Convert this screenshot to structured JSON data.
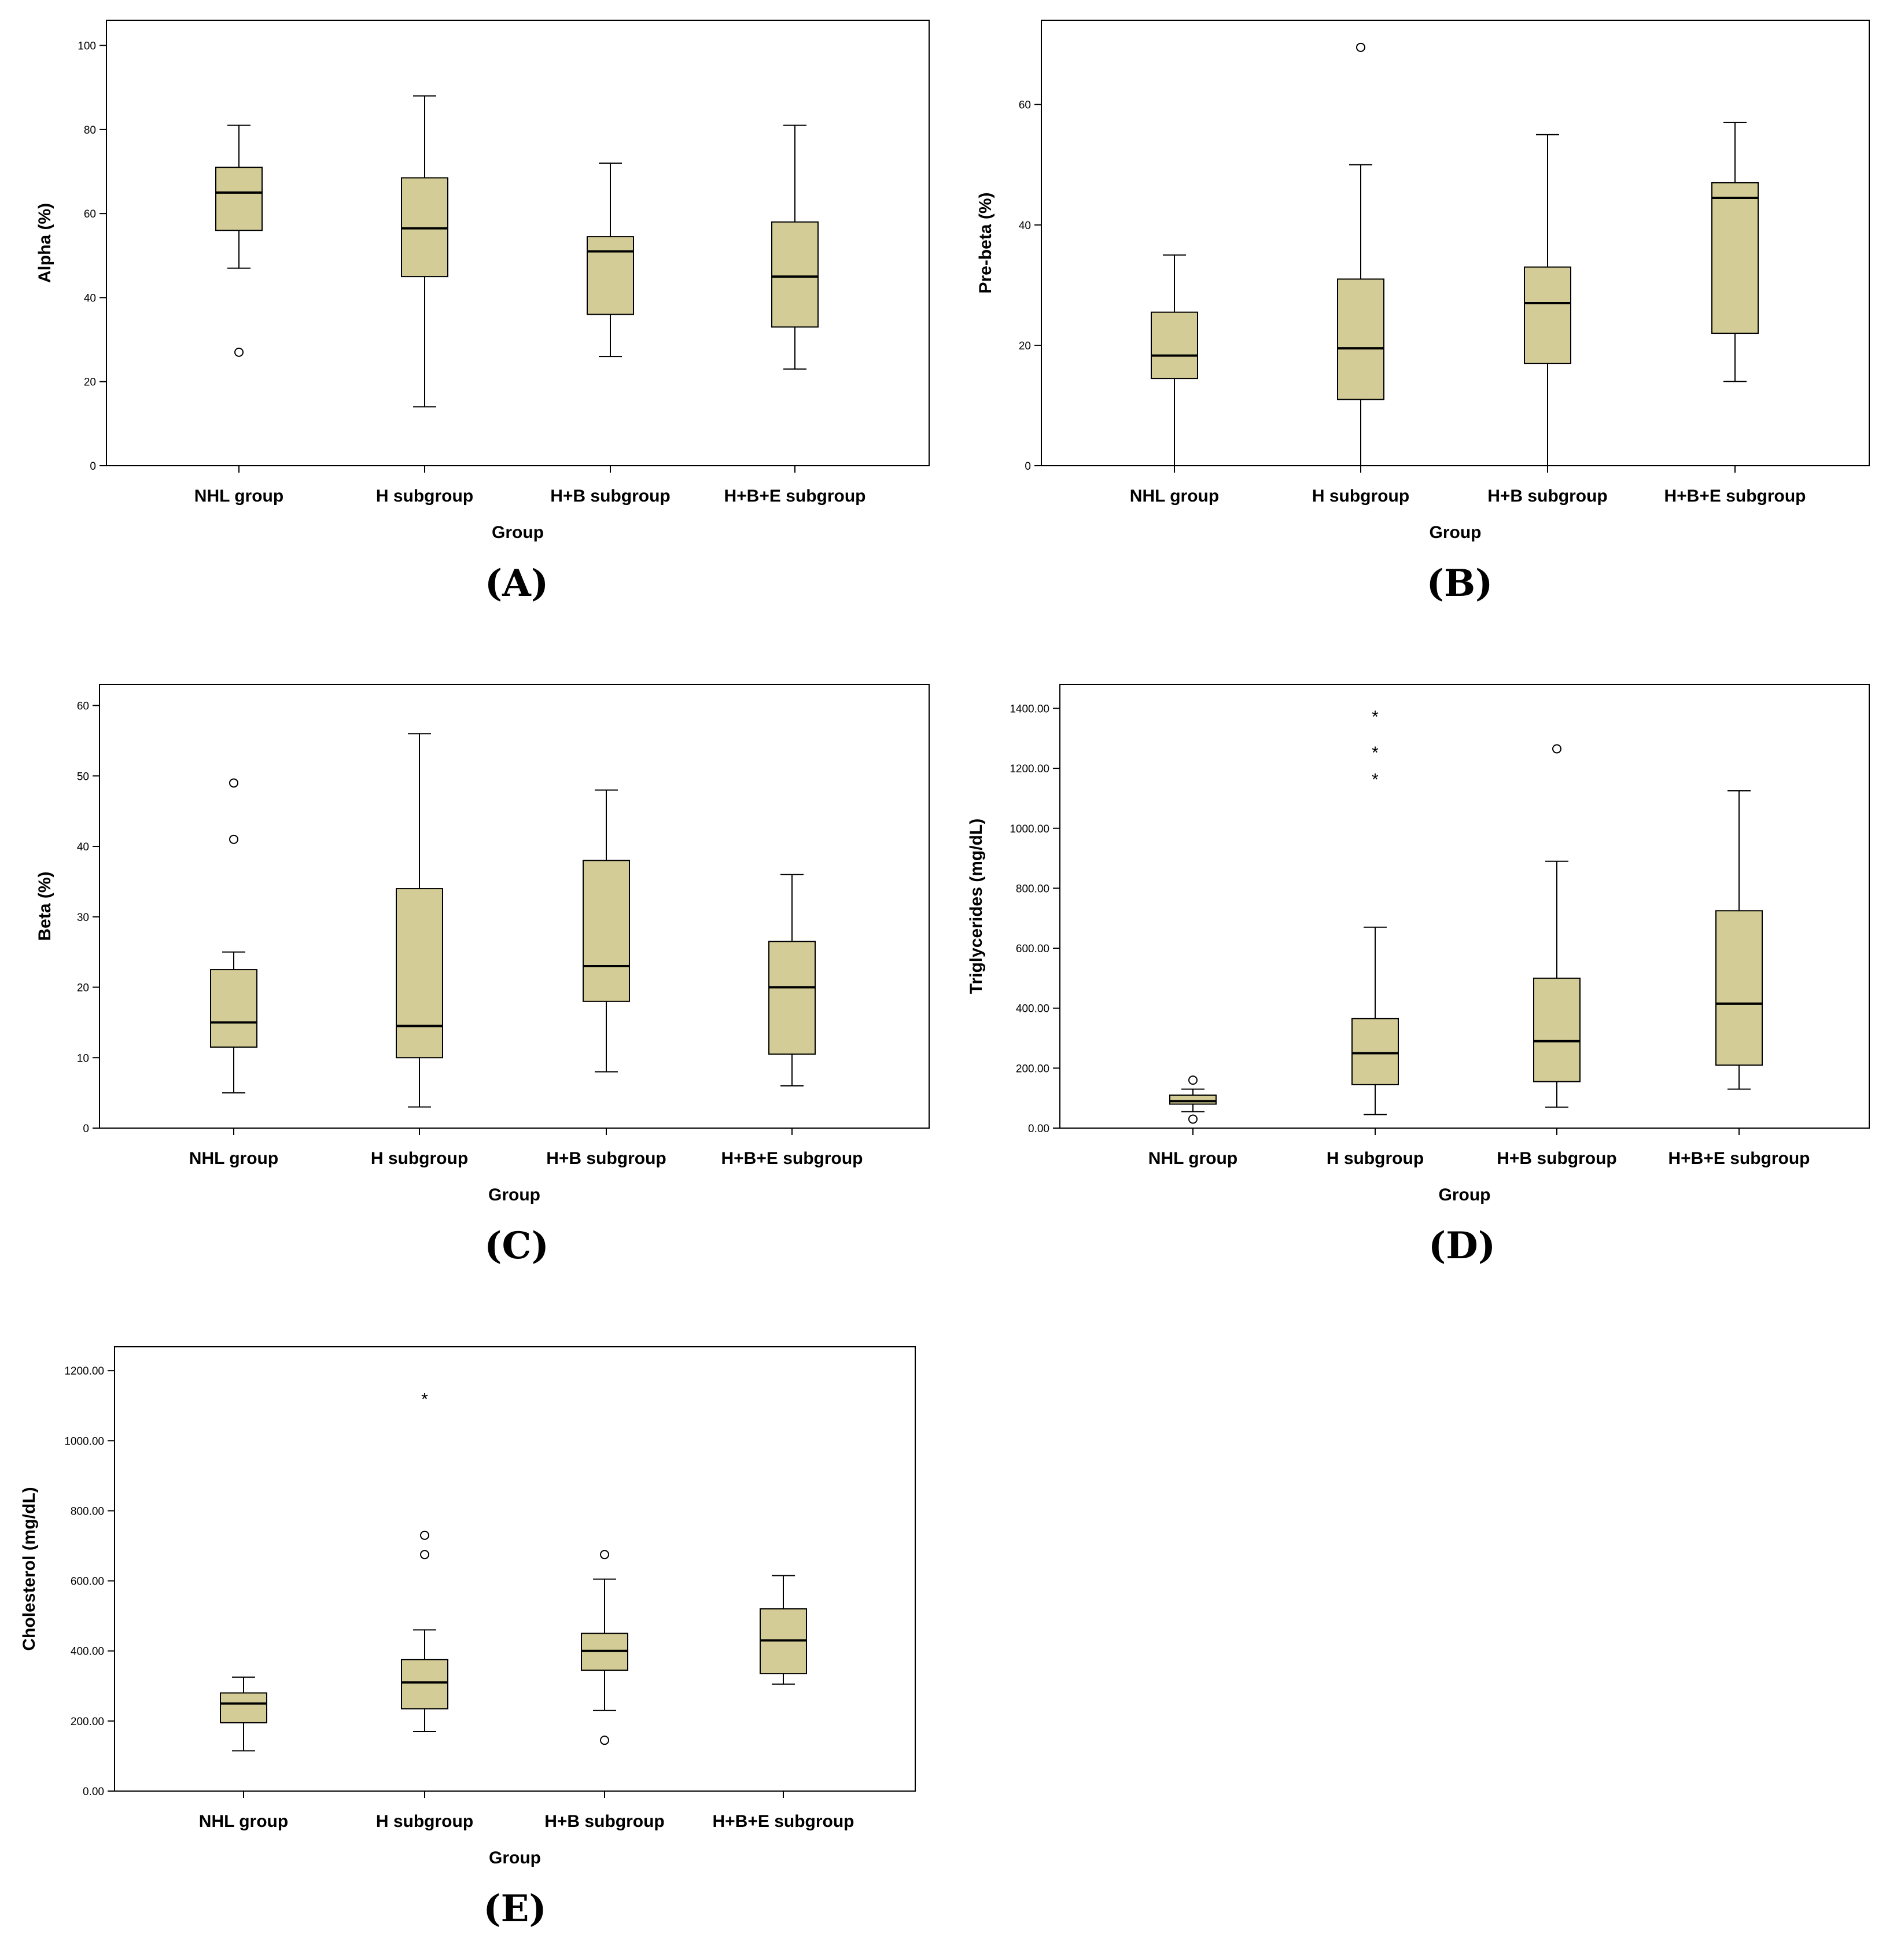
{
  "colors": {
    "box_fill": "#d4cc96",
    "stroke": "#000000",
    "background": "#ffffff"
  },
  "chart_data": [
    {
      "type": "box",
      "panel_label": "(A)",
      "xlabel": "Group",
      "ylabel": "Alpha (%)",
      "categories": [
        "NHL group",
        "H subgroup",
        "H+B subgroup",
        "H+B+E subgroup"
      ],
      "ylim": [
        0,
        106
      ],
      "yticks": [
        0,
        20,
        40,
        60,
        80,
        100
      ],
      "ytick_labels": [
        "0",
        "20",
        "40",
        "60",
        "80",
        "100"
      ],
      "boxes": [
        {
          "whisker_low": 47,
          "q1": 56,
          "median": 65,
          "q3": 71,
          "whisker_high": 81,
          "outliers": [
            27
          ],
          "extremes": []
        },
        {
          "whisker_low": 14,
          "q1": 45,
          "median": 56.5,
          "q3": 68.5,
          "whisker_high": 88,
          "outliers": [],
          "extremes": []
        },
        {
          "whisker_low": 26,
          "q1": 36,
          "median": 51,
          "q3": 54.5,
          "whisker_high": 72,
          "outliers": [],
          "extremes": []
        },
        {
          "whisker_low": 23,
          "q1": 33,
          "median": 45,
          "q3": 58,
          "whisker_high": 81,
          "outliers": [],
          "extremes": []
        }
      ]
    },
    {
      "type": "box",
      "panel_label": "(B)",
      "xlabel": "Group",
      "ylabel": "Pre-beta (%)",
      "categories": [
        "NHL group",
        "H subgroup",
        "H+B subgroup",
        "H+B+E subgroup"
      ],
      "ylim": [
        0,
        74
      ],
      "yticks": [
        0,
        20,
        40,
        60
      ],
      "ytick_labels": [
        "0",
        "20",
        "40",
        "60"
      ],
      "boxes": [
        {
          "whisker_low": 0,
          "q1": 14.5,
          "median": 18.3,
          "q3": 25.5,
          "whisker_high": 35,
          "outliers": [],
          "extremes": []
        },
        {
          "whisker_low": 0,
          "q1": 11,
          "median": 19.5,
          "q3": 31,
          "whisker_high": 50,
          "outliers": [
            69.5
          ],
          "extremes": []
        },
        {
          "whisker_low": 0,
          "q1": 17,
          "median": 27,
          "q3": 33,
          "whisker_high": 55,
          "outliers": [],
          "extremes": []
        },
        {
          "whisker_low": 14,
          "q1": 22,
          "median": 44.5,
          "q3": 47,
          "whisker_high": 57,
          "outliers": [],
          "extremes": []
        }
      ]
    },
    {
      "type": "box",
      "panel_label": "(C)",
      "xlabel": "Group",
      "ylabel": "Beta (%)",
      "categories": [
        "NHL group",
        "H subgroup",
        "H+B subgroup",
        "H+B+E subgroup"
      ],
      "ylim": [
        0,
        63
      ],
      "yticks": [
        0,
        10,
        20,
        30,
        40,
        50,
        60
      ],
      "ytick_labels": [
        "0",
        "10",
        "20",
        "30",
        "40",
        "50",
        "60"
      ],
      "boxes": [
        {
          "whisker_low": 5,
          "q1": 11.5,
          "median": 15,
          "q3": 22.5,
          "whisker_high": 25,
          "outliers": [
            41,
            49
          ],
          "extremes": []
        },
        {
          "whisker_low": 3,
          "q1": 10,
          "median": 14.5,
          "q3": 34,
          "whisker_high": 56,
          "outliers": [],
          "extremes": []
        },
        {
          "whisker_low": 8,
          "q1": 18,
          "median": 23,
          "q3": 38,
          "whisker_high": 48,
          "outliers": [],
          "extremes": []
        },
        {
          "whisker_low": 6,
          "q1": 10.5,
          "median": 20,
          "q3": 26.5,
          "whisker_high": 36,
          "outliers": [],
          "extremes": []
        }
      ]
    },
    {
      "type": "box",
      "panel_label": "(D)",
      "xlabel": "Group",
      "ylabel": "Triglycerides (mg/dL)",
      "categories": [
        "NHL group",
        "H subgroup",
        "H+B subgroup",
        "H+B+E subgroup"
      ],
      "ylim": [
        0,
        1480
      ],
      "yticks": [
        0,
        200,
        400,
        600,
        800,
        1000,
        1200,
        1400
      ],
      "ytick_labels": [
        "0.00",
        "200.00",
        "400.00",
        "600.00",
        "800.00",
        "1000.00",
        "1200.00",
        "1400.00"
      ],
      "boxes": [
        {
          "whisker_low": 55,
          "q1": 80,
          "median": 90,
          "q3": 110,
          "whisker_high": 130,
          "outliers": [
            30,
            160
          ],
          "extremes": []
        },
        {
          "whisker_low": 45,
          "q1": 145,
          "median": 250,
          "q3": 365,
          "whisker_high": 670,
          "outliers": [],
          "extremes": [
            1170,
            1260,
            1380
          ]
        },
        {
          "whisker_low": 70,
          "q1": 155,
          "median": 290,
          "q3": 500,
          "whisker_high": 890,
          "outliers": [
            1265
          ],
          "extremes": []
        },
        {
          "whisker_low": 130,
          "q1": 210,
          "median": 415,
          "q3": 725,
          "whisker_high": 1125,
          "outliers": [],
          "extremes": []
        }
      ]
    },
    {
      "type": "box",
      "panel_label": "(E)",
      "xlabel": "Group",
      "ylabel": "Cholesterol (mg/dL)",
      "categories": [
        "NHL group",
        "H subgroup",
        "H+B subgroup",
        "H+B+E subgroup"
      ],
      "ylim": [
        0,
        1268
      ],
      "yticks": [
        0,
        200,
        400,
        600,
        800,
        1000,
        1200
      ],
      "ytick_labels": [
        "0.00",
        "200.00",
        "400.00",
        "600.00",
        "800.00",
        "1000.00",
        "1200.00"
      ],
      "boxes": [
        {
          "whisker_low": 115,
          "q1": 195,
          "median": 250,
          "q3": 280,
          "whisker_high": 325,
          "outliers": [],
          "extremes": []
        },
        {
          "whisker_low": 170,
          "q1": 235,
          "median": 310,
          "q3": 375,
          "whisker_high": 460,
          "outliers": [
            675,
            730
          ],
          "extremes": [
            1125
          ]
        },
        {
          "whisker_low": 230,
          "q1": 345,
          "median": 400,
          "q3": 450,
          "whisker_high": 605,
          "outliers": [
            145,
            675
          ],
          "extremes": []
        },
        {
          "whisker_low": 305,
          "q1": 335,
          "median": 430,
          "q3": 520,
          "whisker_high": 615,
          "outliers": [],
          "extremes": []
        }
      ]
    }
  ]
}
